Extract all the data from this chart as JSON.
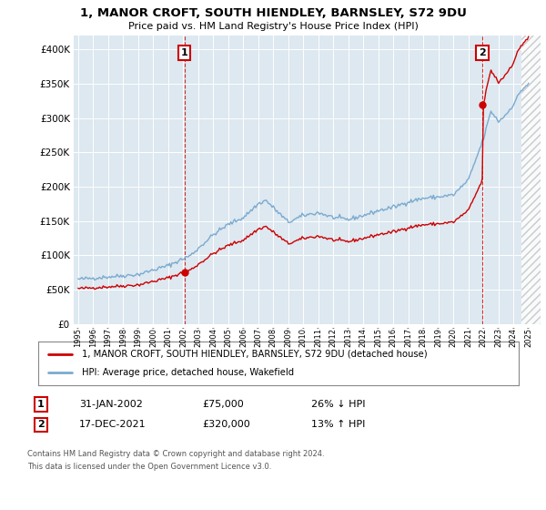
{
  "title": "1, MANOR CROFT, SOUTH HIENDLEY, BARNSLEY, S72 9DU",
  "subtitle": "Price paid vs. HM Land Registry's House Price Index (HPI)",
  "hpi_label": "HPI: Average price, detached house, Wakefield",
  "property_label": "1, MANOR CROFT, SOUTH HIENDLEY, BARNSLEY, S72 9DU (detached house)",
  "footnote1": "Contains HM Land Registry data © Crown copyright and database right 2024.",
  "footnote2": "This data is licensed under the Open Government Licence v3.0.",
  "sale1_date": "31-JAN-2002",
  "sale1_price": 75000,
  "sale1_label": "26% ↓ HPI",
  "sale2_date": "17-DEC-2021",
  "sale2_price": 320000,
  "sale2_label": "13% ↑ HPI",
  "hpi_color": "#7aaad0",
  "property_color": "#cc0000",
  "annotation_box_color": "#cc0000",
  "bg_color": "#dde8f0",
  "ylim": [
    0,
    420000
  ],
  "yticks": [
    0,
    50000,
    100000,
    150000,
    200000,
    250000,
    300000,
    350000,
    400000
  ],
  "x_start_year": 1995,
  "x_end_year": 2025
}
